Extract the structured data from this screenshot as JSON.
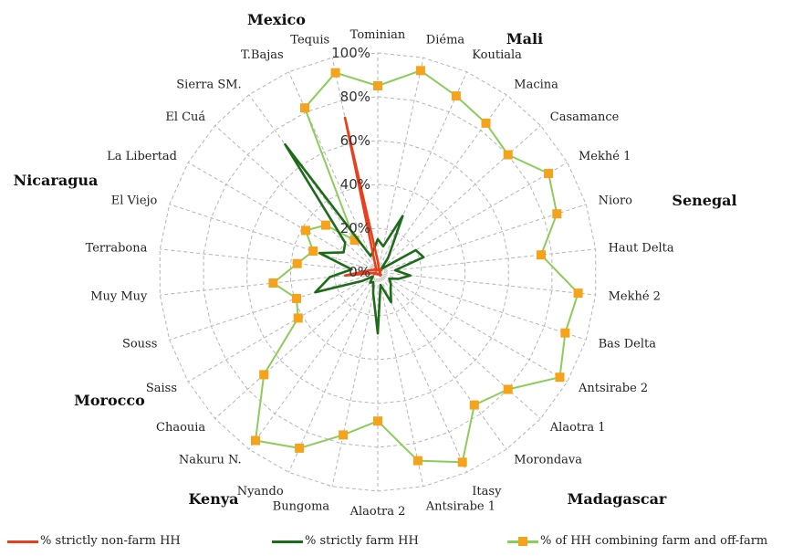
{
  "chart_data": {
    "type": "radar",
    "categories": [
      "Tominian",
      "Diéma",
      "Koutiala",
      "Macina",
      "Casamance",
      "Mekhé 1",
      "Nioro",
      "Haut Delta",
      "Mekhé 2",
      "Bas Delta",
      "Antsirabe 2",
      "Alaotra 1",
      "Morondava",
      "Itasy",
      "Antsirabe 1",
      "Alaotra 2",
      "Bungoma",
      "Nyando",
      "Nakuru N.",
      "Chaouia",
      "Saiss",
      "Souss",
      "Muy Muy",
      "Terrabona",
      "El Viejo",
      "La Libertad",
      "El Cuá",
      "Sierra SM.",
      "T.Bajas",
      "Tequis"
    ],
    "axis_ticks": [
      "0%",
      "20%",
      "40%",
      "60%",
      "80%",
      "100%"
    ],
    "ylim": [
      0,
      100
    ],
    "groups": [
      {
        "label": "Mexico"
      },
      {
        "label": "Mali"
      },
      {
        "label": "Senegal"
      },
      {
        "label": "Madagascar"
      },
      {
        "label": "Kenya"
      },
      {
        "label": "Morocco"
      },
      {
        "label": "Nicaragua"
      }
    ],
    "series": [
      {
        "name": "% strictly non-farm HH",
        "color": "#e8401c",
        "values": [
          5,
          2,
          1,
          1,
          1,
          2,
          1,
          1,
          1,
          1,
          1,
          2,
          2,
          1,
          1,
          1,
          1,
          1,
          1,
          1,
          2,
          1,
          15,
          5,
          3,
          2,
          2,
          1,
          2,
          72
        ]
      },
      {
        "name": "% strictly farm HH",
        "color": "#1e6b1a",
        "values": [
          15,
          12,
          28,
          8,
          2,
          20,
          22,
          8,
          15,
          10,
          6,
          8,
          10,
          15,
          6,
          28,
          10,
          5,
          6,
          3,
          8,
          30,
          22,
          12,
          28,
          18,
          20,
          72,
          8,
          10
        ]
      },
      {
        "name": "% of HH combining farm and off-farm",
        "color": "#8ccc5a",
        "marker_color": "#f4a31a",
        "values": [
          85,
          94,
          88,
          84,
          80,
          90,
          86,
          75,
          92,
          90,
          96,
          80,
          75,
          95,
          88,
          68,
          76,
          88,
          95,
          70,
          42,
          39,
          48,
          37,
          31,
          38,
          32,
          18,
          82,
          93
        ]
      }
    ]
  }
}
